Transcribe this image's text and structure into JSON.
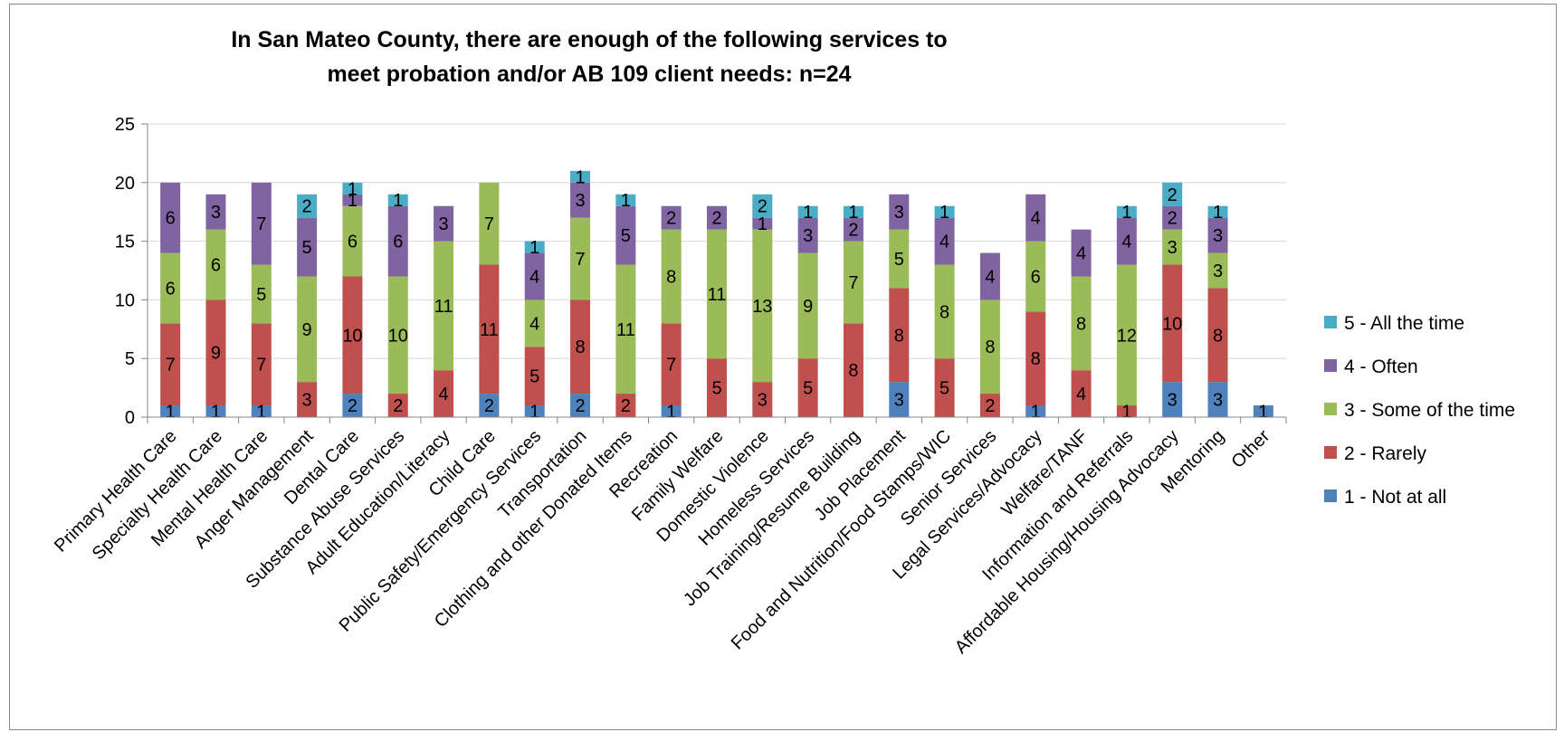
{
  "chart_data": {
    "type": "bar",
    "stacked": true,
    "title": "In San Mateo County, there are enough of the following services to meet probation and/or AB 109 client needs: n=24",
    "title_lines": [
      "In San Mateo County, there are enough of the following services to",
      "meet probation and/or AB 109 client needs: n=24"
    ],
    "categories": [
      "Primary Health Care",
      "Specialty Health Care",
      "Mental Health Care",
      "Anger Management",
      "Dental Care",
      "Substance Abuse Services",
      "Adult Education/Literacy",
      "Child Care",
      "Public Safety/Emergency Services",
      "Transportation",
      "Clothing and other Donated Items",
      "Recreation",
      "Family Welfare",
      "Domestic Violence",
      "Homeless Services",
      "Job Training/Resume Building",
      "Job Placement",
      "Food and Nutrition/Food Stamps/WIC",
      "Senior Services",
      "Legal Services/Advocacy",
      "Welfare/TANF",
      "Information and Referrals",
      "Affordable Housing/Housing Advocacy",
      "Mentoring",
      "Other"
    ],
    "series": [
      {
        "name": "1 - Not at all",
        "color": "#4f81bd",
        "values": [
          1,
          1,
          1,
          0,
          2,
          0,
          0,
          2,
          1,
          2,
          0,
          1,
          0,
          0,
          0,
          0,
          3,
          0,
          0,
          1,
          0,
          0,
          3,
          3,
          1
        ]
      },
      {
        "name": "2 - Rarely",
        "color": "#c0504d",
        "values": [
          7,
          9,
          7,
          3,
          10,
          2,
          4,
          11,
          5,
          8,
          2,
          7,
          5,
          3,
          5,
          8,
          8,
          5,
          2,
          8,
          4,
          1,
          10,
          8,
          0
        ]
      },
      {
        "name": "3 - Some of the time",
        "color": "#9bbb59",
        "values": [
          6,
          6,
          5,
          9,
          6,
          10,
          11,
          7,
          4,
          7,
          11,
          8,
          11,
          13,
          9,
          7,
          5,
          8,
          8,
          6,
          8,
          12,
          3,
          3,
          0
        ]
      },
      {
        "name": "4 - Often",
        "color": "#8064a2",
        "values": [
          6,
          3,
          7,
          5,
          1,
          6,
          3,
          0,
          4,
          3,
          5,
          2,
          2,
          1,
          3,
          2,
          3,
          4,
          4,
          4,
          4,
          4,
          2,
          3,
          0
        ]
      },
      {
        "name": "5 - All the time",
        "color": "#4bacc6",
        "values": [
          0,
          0,
          0,
          2,
          1,
          1,
          0,
          0,
          1,
          1,
          1,
          0,
          0,
          2,
          1,
          1,
          0,
          1,
          0,
          0,
          0,
          1,
          2,
          1,
          0
        ]
      }
    ],
    "ylim": [
      0,
      25
    ],
    "yticks": [
      "0",
      "5",
      "10",
      "15",
      "20",
      "25"
    ],
    "grid": true,
    "legend_position": "right",
    "xlabel": "",
    "ylabel": ""
  }
}
